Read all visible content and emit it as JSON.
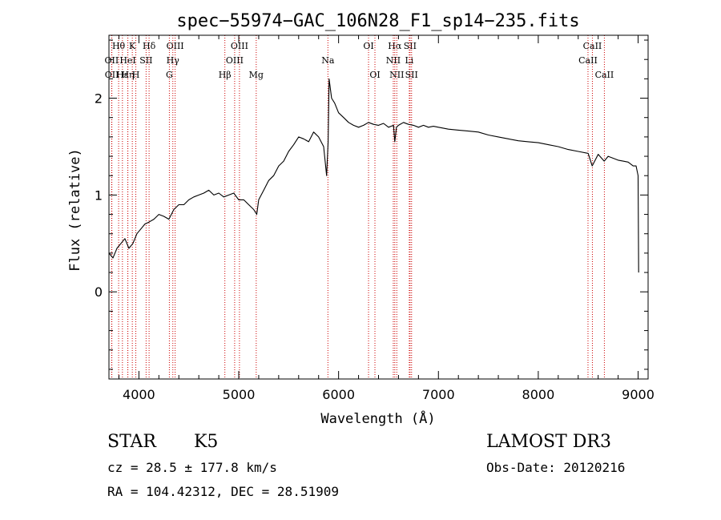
{
  "chart_data": {
    "type": "line",
    "title": "spec−55974−GAC_106N28_F1_sp14−235.fits",
    "xlabel": "Wavelength (Å)",
    "ylabel": "Flux (relative)",
    "xlim": [
      3700,
      9100
    ],
    "ylim": [
      -0.9,
      2.65
    ],
    "x_ticks": [
      4000,
      5000,
      6000,
      7000,
      8000,
      9000
    ],
    "x_tick_labels": [
      "4000",
      "5000",
      "6000",
      "7000",
      "8000",
      "9000"
    ],
    "y_ticks": [
      0,
      1,
      2
    ],
    "y_tick_labels": [
      "0",
      "1",
      "2"
    ],
    "grid": false,
    "line_color": "#000000",
    "marker_color": "#cc0000",
    "series": [
      {
        "name": "flux",
        "x": [
          3700,
          3740,
          3780,
          3820,
          3860,
          3900,
          3940,
          3980,
          4020,
          4060,
          4100,
          4150,
          4200,
          4250,
          4300,
          4350,
          4400,
          4450,
          4500,
          4550,
          4600,
          4650,
          4700,
          4750,
          4800,
          4850,
          4900,
          4950,
          5000,
          5050,
          5100,
          5150,
          5180,
          5200,
          5250,
          5300,
          5350,
          5400,
          5450,
          5500,
          5550,
          5600,
          5650,
          5700,
          5750,
          5800,
          5850,
          5880,
          5895,
          5905,
          5930,
          5960,
          6000,
          6050,
          6100,
          6150,
          6200,
          6250,
          6300,
          6350,
          6400,
          6450,
          6500,
          6550,
          6563,
          6580,
          6600,
          6650,
          6700,
          6750,
          6800,
          6850,
          6900,
          6950,
          7000,
          7100,
          7200,
          7300,
          7400,
          7500,
          7600,
          7700,
          7800,
          7900,
          8000,
          8100,
          8200,
          8300,
          8400,
          8500,
          8540,
          8600,
          8660,
          8700,
          8750,
          8800,
          8850,
          8900,
          8950,
          8980,
          9000,
          9005
        ],
        "y": [
          0.4,
          0.35,
          0.45,
          0.5,
          0.55,
          0.45,
          0.5,
          0.6,
          0.65,
          0.7,
          0.72,
          0.75,
          0.8,
          0.78,
          0.75,
          0.85,
          0.9,
          0.9,
          0.95,
          0.98,
          1.0,
          1.02,
          1.05,
          1.0,
          1.02,
          0.98,
          1.0,
          1.02,
          0.95,
          0.95,
          0.9,
          0.85,
          0.8,
          0.95,
          1.05,
          1.15,
          1.2,
          1.3,
          1.35,
          1.45,
          1.52,
          1.6,
          1.58,
          1.55,
          1.65,
          1.6,
          1.5,
          1.2,
          1.55,
          2.2,
          2.0,
          1.95,
          1.85,
          1.8,
          1.75,
          1.72,
          1.7,
          1.72,
          1.75,
          1.73,
          1.72,
          1.74,
          1.7,
          1.72,
          1.55,
          1.7,
          1.72,
          1.75,
          1.73,
          1.72,
          1.7,
          1.72,
          1.7,
          1.71,
          1.7,
          1.68,
          1.67,
          1.66,
          1.65,
          1.62,
          1.6,
          1.58,
          1.56,
          1.55,
          1.54,
          1.52,
          1.5,
          1.47,
          1.45,
          1.43,
          1.3,
          1.42,
          1.35,
          1.4,
          1.38,
          1.36,
          1.35,
          1.34,
          1.3,
          1.3,
          1.2,
          0.2
        ]
      }
    ],
    "line_markers": [
      {
        "label": "Hθ",
        "wavelength": 3797,
        "row": 1
      },
      {
        "label": "OII",
        "wavelength": 3727,
        "row": 2
      },
      {
        "label": "OII",
        "wavelength": 3729,
        "row": 3
      },
      {
        "label": "Hε",
        "wavelength": 3835,
        "row": 3
      },
      {
        "label": "K",
        "wavelength": 3934,
        "row": 1
      },
      {
        "label": "HeI",
        "wavelength": 3889,
        "row": 2
      },
      {
        "label": "Hη",
        "wavelength": 3889,
        "row": 3
      },
      {
        "label": "H",
        "wavelength": 3969,
        "row": 3
      },
      {
        "label": "Hδ",
        "wavelength": 4102,
        "row": 1
      },
      {
        "label": "SII",
        "wavelength": 4072,
        "row": 2
      },
      {
        "label": "OIII",
        "wavelength": 4363,
        "row": 1
      },
      {
        "label": "Hγ",
        "wavelength": 4340,
        "row": 2
      },
      {
        "label": "G",
        "wavelength": 4305,
        "row": 3
      },
      {
        "label": "OIII",
        "wavelength": 5007,
        "row": 1
      },
      {
        "label": "OIII",
        "wavelength": 4959,
        "row": 2
      },
      {
        "label": "Hβ",
        "wavelength": 4861,
        "row": 3
      },
      {
        "label": "Mg",
        "wavelength": 5175,
        "row": 3
      },
      {
        "label": "Na",
        "wavelength": 5893,
        "row": 2
      },
      {
        "label": "OI",
        "wavelength": 6300,
        "row": 1
      },
      {
        "label": "OI",
        "wavelength": 6364,
        "row": 3
      },
      {
        "label": "Hα",
        "wavelength": 6563,
        "row": 1
      },
      {
        "label": "NII",
        "wavelength": 6548,
        "row": 2
      },
      {
        "label": "NII",
        "wavelength": 6583,
        "row": 3
      },
      {
        "label": "SII",
        "wavelength": 6716,
        "row": 1
      },
      {
        "label": "Li",
        "wavelength": 6708,
        "row": 2
      },
      {
        "label": "SII",
        "wavelength": 6731,
        "row": 3
      },
      {
        "label": "CaII",
        "wavelength": 8542,
        "row": 1
      },
      {
        "label": "CaII",
        "wavelength": 8498,
        "row": 2
      },
      {
        "label": "CaII",
        "wavelength": 8662,
        "row": 3
      }
    ]
  },
  "info": {
    "object_class": "STAR",
    "subclass": "K5",
    "survey": "LAMOST DR3",
    "redshift": "cz = 28.5 ± 177.8 km/s",
    "obs_date": "Obs-Date: 20120216",
    "coordinates": "RA = 104.42312, DEC =  28.51909"
  }
}
